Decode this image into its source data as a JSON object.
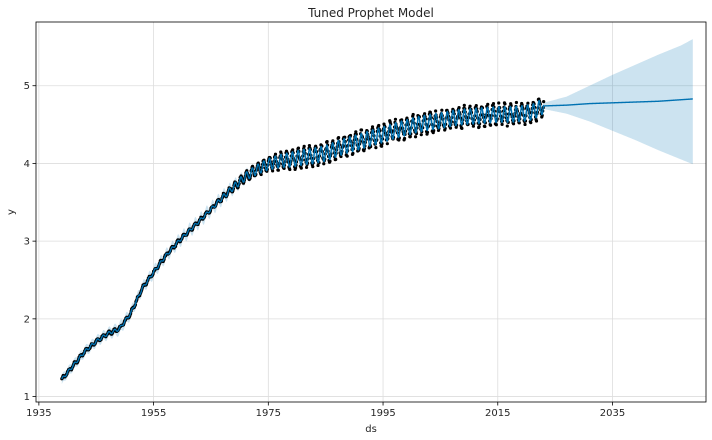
{
  "chart_data": {
    "type": "line",
    "title": "Tuned Prophet Model",
    "xlabel": "ds",
    "ylabel": "y",
    "xlim": [
      1934.5,
      2051.3
    ],
    "ylim": [
      0.93,
      5.82
    ],
    "xticks": [
      1935,
      1955,
      1975,
      1995,
      2015,
      2035
    ],
    "yticks": [
      1,
      2,
      3,
      4,
      5
    ],
    "grid": true,
    "legend": "none",
    "colors": {
      "forecast_line": "#0072b2",
      "uncertainty_band": "#0072b2",
      "observed_points": "#000000",
      "grid": "#dddddd",
      "spine": "#000000"
    },
    "series": [
      {
        "name": "",
        "kind": "forecast",
        "x": [
          1939,
          1941,
          1943,
          1945,
          1947,
          1949,
          1951,
          1953,
          1955,
          1957,
          1959,
          1961,
          1963,
          1965,
          1967,
          1969,
          1971,
          1973,
          1975,
          1977,
          1979,
          1981,
          1983,
          1985,
          1987,
          1989,
          1991,
          1993,
          1995,
          1997,
          1999,
          2001,
          2003,
          2005,
          2007,
          2009,
          2011,
          2013,
          2015,
          2017,
          2019,
          2021,
          2023.0,
          2027,
          2031,
          2035,
          2039,
          2043,
          2047,
          2049
        ],
        "y": [
          1.22,
          1.4,
          1.58,
          1.71,
          1.81,
          1.87,
          2.07,
          2.39,
          2.6,
          2.8,
          2.97,
          3.12,
          3.26,
          3.41,
          3.56,
          3.7,
          3.83,
          3.92,
          3.99,
          4.03,
          4.05,
          4.08,
          4.1,
          4.13,
          4.19,
          4.24,
          4.28,
          4.33,
          4.37,
          4.42,
          4.46,
          4.5,
          4.53,
          4.55,
          4.58,
          4.6,
          4.61,
          4.62,
          4.63,
          4.63,
          4.64,
          4.66,
          4.74,
          4.75,
          4.77,
          4.78,
          4.79,
          4.8,
          4.82,
          4.83
        ],
        "upper": [
          1.28,
          1.46,
          1.64,
          1.77,
          1.87,
          1.94,
          2.13,
          2.45,
          2.66,
          2.86,
          3.03,
          3.18,
          3.32,
          3.47,
          3.62,
          3.76,
          3.89,
          3.98,
          4.05,
          4.09,
          4.11,
          4.14,
          4.16,
          4.19,
          4.25,
          4.3,
          4.34,
          4.39,
          4.43,
          4.48,
          4.52,
          4.56,
          4.59,
          4.61,
          4.64,
          4.66,
          4.67,
          4.68,
          4.69,
          4.69,
          4.7,
          4.72,
          4.78,
          4.86,
          5.0,
          5.14,
          5.27,
          5.4,
          5.52,
          5.6
        ],
        "lower": [
          1.16,
          1.34,
          1.52,
          1.65,
          1.75,
          1.8,
          2.01,
          2.33,
          2.54,
          2.74,
          2.91,
          3.06,
          3.2,
          3.35,
          3.5,
          3.64,
          3.77,
          3.86,
          3.93,
          3.97,
          3.99,
          4.02,
          4.04,
          4.07,
          4.13,
          4.18,
          4.22,
          4.27,
          4.31,
          4.36,
          4.4,
          4.44,
          4.47,
          4.49,
          4.52,
          4.54,
          4.55,
          4.56,
          4.57,
          4.57,
          4.58,
          4.6,
          4.7,
          4.64,
          4.54,
          4.42,
          4.3,
          4.17,
          4.05,
          3.99
        ]
      },
      {
        "name": "",
        "kind": "observed",
        "x_start": 1939,
        "x_end": 2023.0,
        "description_range": "monthly observations, scatter of black points around the forecast with seasonal spread"
      }
    ]
  }
}
